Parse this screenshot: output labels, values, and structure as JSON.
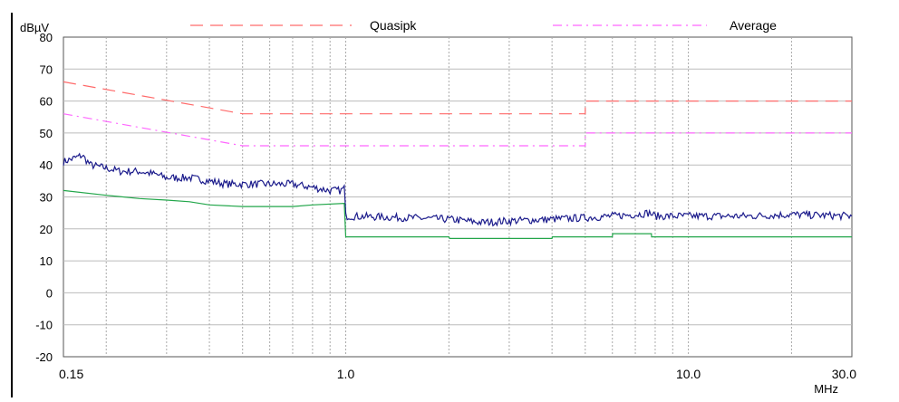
{
  "chart_data": {
    "type": "line",
    "ylabel": "dBµV",
    "xlabel": "MHz",
    "x_scale": "log",
    "xlim": [
      0.15,
      30.0
    ],
    "ylim": [
      -20,
      80
    ],
    "y_ticks": [
      80,
      70,
      60,
      50,
      40,
      30,
      20,
      10,
      0,
      -10,
      -20
    ],
    "y_tick_labels": [
      "80",
      "70",
      "60",
      "50",
      "40",
      "30",
      "20",
      "10",
      "0",
      "-10",
      "-20"
    ],
    "x_tick_labels": [
      {
        "x": 0.15,
        "label": "0.15"
      },
      {
        "x": 1.0,
        "label": "1.0"
      },
      {
        "x": 10.0,
        "label": "10.0"
      },
      {
        "x": 30.0,
        "label": "30.0"
      }
    ],
    "grid": true,
    "legend_position": "top",
    "series": [
      {
        "name": "Quasipk",
        "color": "#ff6a6a",
        "dash": "dashed",
        "x": [
          0.15,
          0.5,
          0.5,
          5.0,
          5.0,
          30.0
        ],
        "y": [
          66,
          56,
          56,
          56,
          60,
          60
        ]
      },
      {
        "name": "Average",
        "color": "#ff66ff",
        "dash": "dashdot",
        "x": [
          0.15,
          0.5,
          0.5,
          5.0,
          5.0,
          30.0
        ],
        "y": [
          56,
          46,
          46,
          46,
          50,
          50
        ]
      },
      {
        "color": "#1c1c8c",
        "noise": 1.2,
        "x": [
          0.15,
          0.16,
          0.17,
          0.18,
          0.2,
          0.22,
          0.25,
          0.28,
          0.3,
          0.35,
          0.4,
          0.45,
          0.5,
          0.55,
          0.6,
          0.7,
          0.8,
          0.9,
          0.97,
          0.99,
          1.0,
          1.02,
          1.5,
          2.0,
          2.5,
          3.0,
          4.0,
          5.0,
          6.0,
          7.0,
          7.7,
          8.0,
          10.0,
          15.0,
          20.0,
          30.0
        ],
        "y": [
          41,
          42,
          43,
          40,
          39,
          38,
          38,
          37,
          36,
          36,
          35,
          34,
          34,
          34,
          34,
          34,
          33,
          32,
          32,
          33,
          24,
          24,
          23.5,
          23,
          22,
          22.5,
          23,
          23.5,
          24,
          24.5,
          25,
          24,
          24,
          24,
          24.5,
          24
        ]
      },
      {
        "color": "#22a64a",
        "noise": 0,
        "x": [
          0.15,
          0.2,
          0.25,
          0.3,
          0.35,
          0.4,
          0.5,
          0.6,
          0.7,
          0.8,
          0.99,
          1.0,
          1.5,
          2.0,
          2.01,
          3.0,
          4.0,
          4.01,
          6.0,
          6.01,
          7.8,
          7.81,
          10.0,
          30.0
        ],
        "y": [
          32,
          30.5,
          29.5,
          29,
          28.5,
          27.5,
          27,
          27,
          27,
          27.5,
          28,
          17.5,
          17.5,
          17.5,
          17,
          17,
          17,
          17.5,
          17.5,
          18.5,
          18.5,
          17.5,
          17.5,
          17.5
        ]
      }
    ]
  }
}
